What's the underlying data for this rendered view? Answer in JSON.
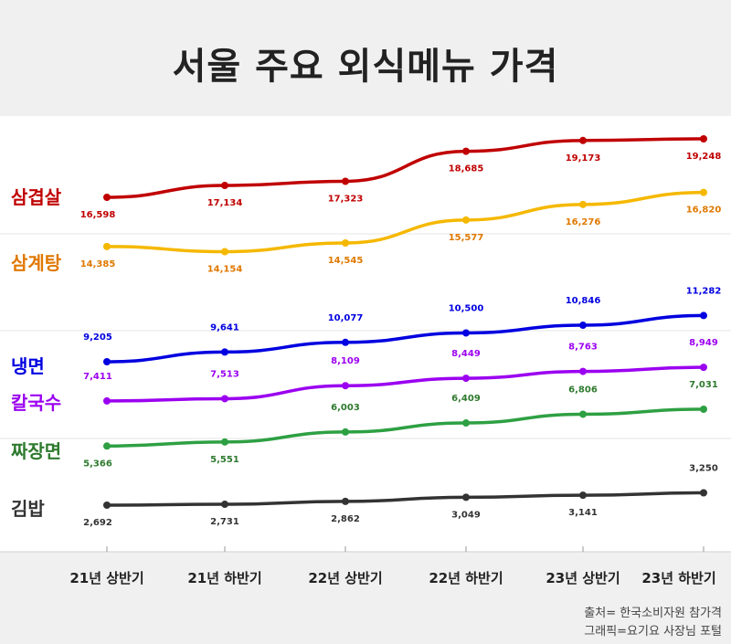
{
  "chart_data": {
    "type": "line",
    "title": "서울 주요 외식메뉴 가격",
    "categories": [
      "21년 상반기",
      "21년 하반기",
      "22년 상반기",
      "22년 하반기",
      "23년 상반기",
      "23년 하반기"
    ],
    "series": [
      {
        "name": "삼겹살",
        "color": "#c00000",
        "values": [
          16598,
          17134,
          17323,
          18685,
          19173,
          19248
        ],
        "labels": [
          "16,598",
          "17,134",
          "17,323",
          "18,685",
          "19,173",
          "19,248"
        ]
      },
      {
        "name": "삼계탕",
        "color": "#f5b800",
        "labelColor": "#e07800",
        "values": [
          14385,
          14154,
          14545,
          15577,
          16276,
          16820
        ],
        "labels": [
          "14,385",
          "14,154",
          "14,545",
          "15,577",
          "16,276",
          "16,820"
        ]
      },
      {
        "name": "냉면",
        "color": "#0000e0",
        "values": [
          9205,
          9641,
          10077,
          10500,
          10846,
          11282
        ],
        "labels": [
          "9,205",
          "9,641",
          "10,077",
          "10,500",
          "10,846",
          "11,282"
        ]
      },
      {
        "name": "칼국수",
        "color": "#9b00f0",
        "values": [
          7411,
          7513,
          8109,
          8449,
          8763,
          8949
        ],
        "labels": [
          "7,411",
          "7,513",
          "8,109",
          "8,449",
          "8,763",
          "8,949"
        ]
      },
      {
        "name": "짜장면",
        "color": "#2ea043",
        "labelColor": "#2e7a2e",
        "values": [
          5366,
          5551,
          6003,
          6409,
          6806,
          7031
        ],
        "labels": [
          "5,366",
          "5,551",
          "6,003",
          "6,409",
          "6,806",
          "7,031"
        ]
      },
      {
        "name": "김밥",
        "color": "#333333",
        "values": [
          2692,
          2731,
          2862,
          3049,
          3141,
          3250
        ],
        "labels": [
          "2,692",
          "2,731",
          "2,862",
          "3,049",
          "3,141",
          "3,250"
        ]
      }
    ]
  },
  "source": {
    "line1": "출처= 한국소비자원 참가격",
    "line2": "그래픽=요기요 사장님 포털"
  }
}
